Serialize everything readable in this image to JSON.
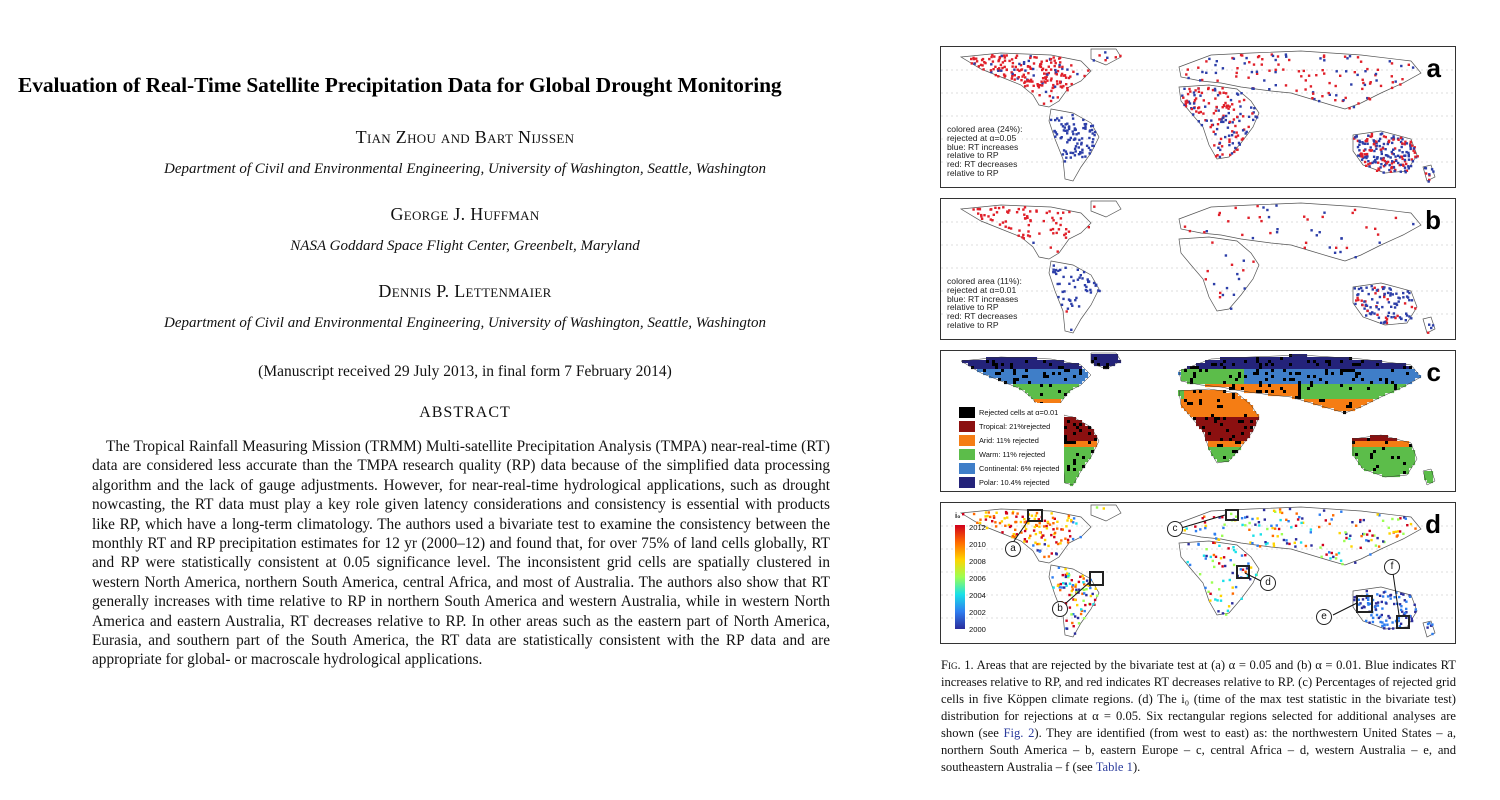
{
  "paper": {
    "title": "Evaluation of Real-Time Satellite Precipitation Data for Global Drought Monitoring",
    "authors": [
      {
        "name": "Tian Zhou and Bart Nijssen",
        "affiliation": "Department of Civil and Environmental Engineering, University of Washington, Seattle, Washington"
      },
      {
        "name": "George J. Huffman",
        "affiliation": "NASA Goddard Space Flight Center, Greenbelt, Maryland"
      },
      {
        "name": "Dennis P. Lettenmaier",
        "affiliation": "Department of Civil and Environmental Engineering, University of Washington, Seattle, Washington"
      }
    ],
    "received": "(Manuscript received 29 July 2013, in final form 7 February 2014)",
    "abstract_heading": "ABSTRACT",
    "abstract": "The Tropical Rainfall Measuring Mission (TRMM) Multi-satellite Precipitation Analysis (TMPA) near-real-time (RT) data are considered less accurate than the TMPA research quality (RP) data because of the simplified data processing algorithm and the lack of gauge adjustments. However, for near-real-time hydrological applications, such as drought nowcasting, the RT data must play a key role given latency considerations and consistency is essential with products like RP, which have a long-term climatology. The authors used a bivariate test to examine the consistency between the monthly RT and RP precipitation estimates for 12 yr (2000–12) and found that, for over 75% of land cells globally, RT and RP were statistically consistent at 0.05 significance level. The inconsistent grid cells are spatially clustered in western North America, northern South America, central Africa, and most of Australia. The authors also show that RT generally increases with time relative to RP in northern South America and western Australia, while in western North America and eastern Australia, RT decreases relative to RP. In other areas such as the eastern part of North America, Eurasia, and southern part of the South America, the RT data are statistically consistent with the RP data and are appropriate for global- or macroscale hydrological applications."
  },
  "figure": {
    "panels": {
      "a": {
        "letter": "a",
        "note": [
          "colored area (24%):",
          "rejected at α=0.05",
          "blue: RT increases",
          "relative to RP",
          "red: RT decreases",
          "relative to RP"
        ]
      },
      "b": {
        "letter": "b",
        "note": [
          "colored area (11%):",
          "rejected at α=0.01",
          "blue: RT increases",
          "relative to RP",
          "red: RT decreases",
          "relative to RP"
        ]
      },
      "c": {
        "letter": "c",
        "legend": [
          {
            "label": "Rejected cells at α=0.01",
            "color": "#000000"
          },
          {
            "label": "Tropical: 21%rejected",
            "color": "#8b1010"
          },
          {
            "label": "Arid: 11% rejected",
            "color": "#f57d14"
          },
          {
            "label": "Warm: 11% rejected",
            "color": "#5cbd4a"
          },
          {
            "label": "Continental: 6% rejected",
            "color": "#3f7ec8"
          },
          {
            "label": "Polar: 10.4% rejected",
            "color": "#24237a"
          }
        ]
      },
      "d": {
        "letter": "d",
        "colorbar_title": "i₀",
        "colorbar_ticks": [
          "2012",
          "2010",
          "2008",
          "2006",
          "2004",
          "2002",
          "2000"
        ],
        "regions": [
          "a",
          "b",
          "c",
          "d",
          "e",
          "f"
        ]
      }
    },
    "caption": {
      "fig_label": "Fig. 1.",
      "text_1": " Areas that are rejected by the bivariate test at (a) α = 0.05 and (b) α = 0.01. Blue indicates RT increases relative to RP, and red indicates RT decreases relative to RP. (c) Percentages of rejected grid cells in five Köppen climate regions. (d) The i₀ (time of the max test statistic in the bivariate test) distribution for rejections at α = 0.05. Six rectangular regions selected for additional analyses are shown (see ",
      "link_fig2": "Fig. 2",
      "text_2": "). They are identified (from west to east) as: the northwestern United States – a, northern South America – b, eastern Europe – c, central Africa – d, western Australia – e, and southeastern Australia – f (see ",
      "link_table1": "Table 1",
      "text_3": ")."
    },
    "colors": {
      "blue": "#2c3ea8",
      "red": "#e0202a",
      "land_outline": "#555555"
    }
  }
}
